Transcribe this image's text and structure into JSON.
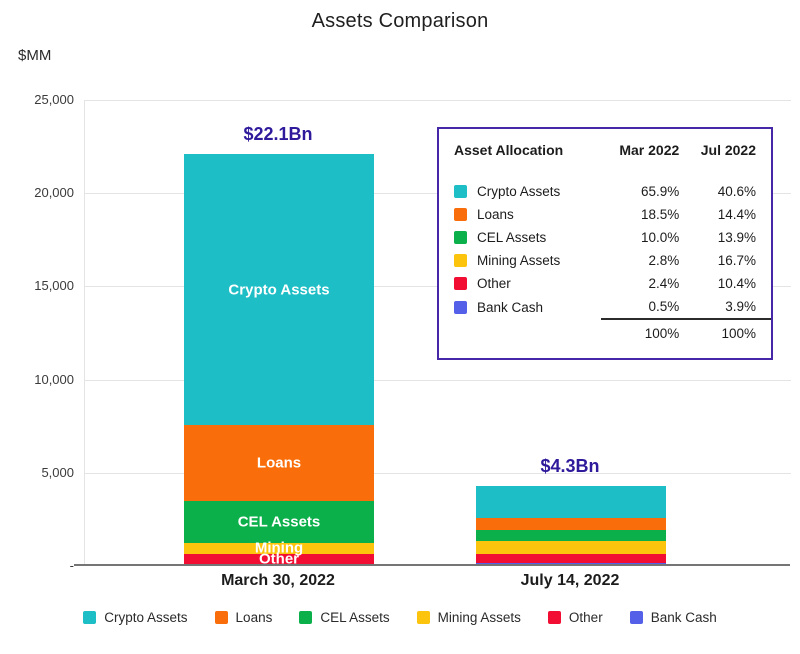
{
  "title": "Assets Comparison",
  "axis_unit_label": "$MM",
  "colors": {
    "accent_purple": "#2e1a9b",
    "table_border": "#4527a8",
    "gridline": "#e4e4e4",
    "baseline": "#757575"
  },
  "chart_data": {
    "type": "bar",
    "stacked": true,
    "title": "Assets Comparison",
    "unit": "$MM",
    "categories": [
      "March 30, 2022",
      "July 14, 2022"
    ],
    "totals_label": [
      "$22.1Bn",
      "$4.3Bn"
    ],
    "totals_mm": [
      22100,
      4300
    ],
    "ylim": [
      0,
      25000
    ],
    "ytick_step": 5000,
    "ytick_labels": [
      "25,000",
      "20,000",
      "15,000",
      "10,000",
      "5,000",
      "-"
    ],
    "grid": true,
    "legend_position": "bottom",
    "segment_labels_category_index": 0,
    "series": [
      {
        "name": "Crypto Assets",
        "color": "#1ebec6",
        "pct": [
          65.9,
          40.6
        ],
        "values_mm": [
          14564,
          1746
        ],
        "bar_label": "Crypto Assets"
      },
      {
        "name": "Loans",
        "color": "#f96e0a",
        "pct": [
          18.5,
          14.4
        ],
        "values_mm": [
          4089,
          619
        ],
        "bar_label": "Loans"
      },
      {
        "name": "CEL Assets",
        "color": "#0cb04b",
        "pct": [
          10.0,
          13.9
        ],
        "values_mm": [
          2210,
          598
        ],
        "bar_label": "CEL Assets"
      },
      {
        "name": "Mining Assets",
        "color": "#fcc40d",
        "pct": [
          2.8,
          16.7
        ],
        "values_mm": [
          619,
          718
        ],
        "bar_label": "Mining"
      },
      {
        "name": "Other",
        "color": "#f20d33",
        "pct": [
          2.4,
          10.4
        ],
        "values_mm": [
          530,
          447
        ],
        "bar_label": "Other"
      },
      {
        "name": "Bank Cash",
        "color": "#5560e8",
        "pct": [
          0.5,
          3.9
        ],
        "values_mm": [
          111,
          168
        ],
        "bar_label": ""
      }
    ]
  },
  "table": {
    "header": [
      "Asset Allocation",
      "Mar 2022",
      "Jul 2022"
    ],
    "rows": [
      {
        "name": "Crypto Assets",
        "mar": "65.9%",
        "jul": "40.6%"
      },
      {
        "name": "Loans",
        "mar": "18.5%",
        "jul": "14.4%"
      },
      {
        "name": "CEL Assets",
        "mar": "10.0%",
        "jul": "13.9%"
      },
      {
        "name": "Mining Assets",
        "mar": "2.8%",
        "jul": "16.7%"
      },
      {
        "name": "Other",
        "mar": "2.4%",
        "jul": "10.4%"
      },
      {
        "name": "Bank Cash",
        "mar": "0.5%",
        "jul": "3.9%"
      }
    ],
    "total_row": {
      "name": "",
      "mar": "100%",
      "jul": "100%"
    }
  },
  "legend": [
    "Crypto Assets",
    "Loans",
    "CEL Assets",
    "Mining Assets",
    "Other",
    "Bank Cash"
  ]
}
